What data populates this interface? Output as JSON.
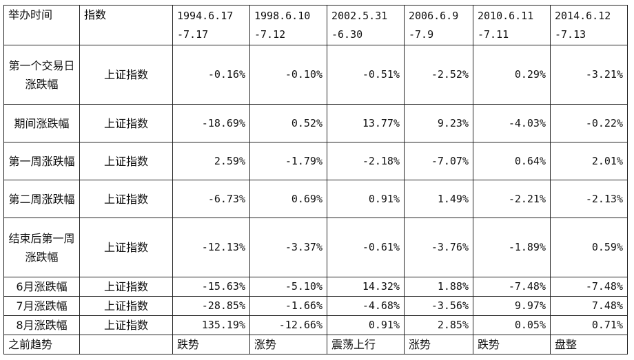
{
  "header": {
    "time_label": "举办时间",
    "index_label": "指数",
    "periods": [
      {
        "line1": "1994.6.17",
        "line2": "-7.17"
      },
      {
        "line1": "1998.6.10",
        "line2": "-7.12"
      },
      {
        "line1": "2002.5.31",
        "line2": "-6.30"
      },
      {
        "line1": "2006.6.9",
        "line2": "-7.9"
      },
      {
        "line1": "2010.6.11",
        "line2": "-7.11"
      },
      {
        "line1": "2014.6.12",
        "line2": "-7.13"
      }
    ]
  },
  "rows": [
    {
      "label": "第一个交易日涨跌幅",
      "index": "上证指数",
      "values": [
        "-0.16%",
        "-0.10%",
        "-0.51%",
        "-2.52%",
        "0.29%",
        "-3.21%"
      ]
    },
    {
      "label": "期间涨跌幅",
      "index": "上证指数",
      "values": [
        "-18.69%",
        "0.52%",
        "13.77%",
        "9.23%",
        "-4.03%",
        "-0.22%"
      ]
    },
    {
      "label": "第一周涨跌幅",
      "index": "上证指数",
      "values": [
        "2.59%",
        "-1.79%",
        "-2.18%",
        "-7.07%",
        "0.64%",
        "2.01%"
      ]
    },
    {
      "label": "第二周涨跌幅",
      "index": "上证指数",
      "values": [
        "-6.73%",
        "0.69%",
        "0.91%",
        "1.49%",
        "-2.21%",
        "-2.13%"
      ]
    },
    {
      "label": "结束后第一周涨跌幅",
      "index": "上证指数",
      "values": [
        "-12.13%",
        "-3.37%",
        "-0.61%",
        "-3.76%",
        "-1.89%",
        "0.59%"
      ]
    },
    {
      "label": "6月涨跌幅",
      "index": "上证指数",
      "values": [
        "-15.63%",
        "-5.10%",
        "14.32%",
        "1.88%",
        "-7.48%",
        "-7.48%"
      ]
    },
    {
      "label": "7月涨跌幅",
      "index": "上证指数",
      "values": [
        "-28.85%",
        "-1.66%",
        "-4.68%",
        "-3.56%",
        "9.97%",
        "7.48%"
      ]
    },
    {
      "label": "8月涨跌幅",
      "index": "上证指数",
      "values": [
        "135.19%",
        "-12.66%",
        "0.91%",
        "2.85%",
        "0.05%",
        "0.71%"
      ]
    }
  ],
  "trend": {
    "label": "之前趋势",
    "index": "",
    "values": [
      "跌势",
      "涨势",
      "震荡上行",
      "涨势",
      "跌势",
      "盘整"
    ]
  }
}
